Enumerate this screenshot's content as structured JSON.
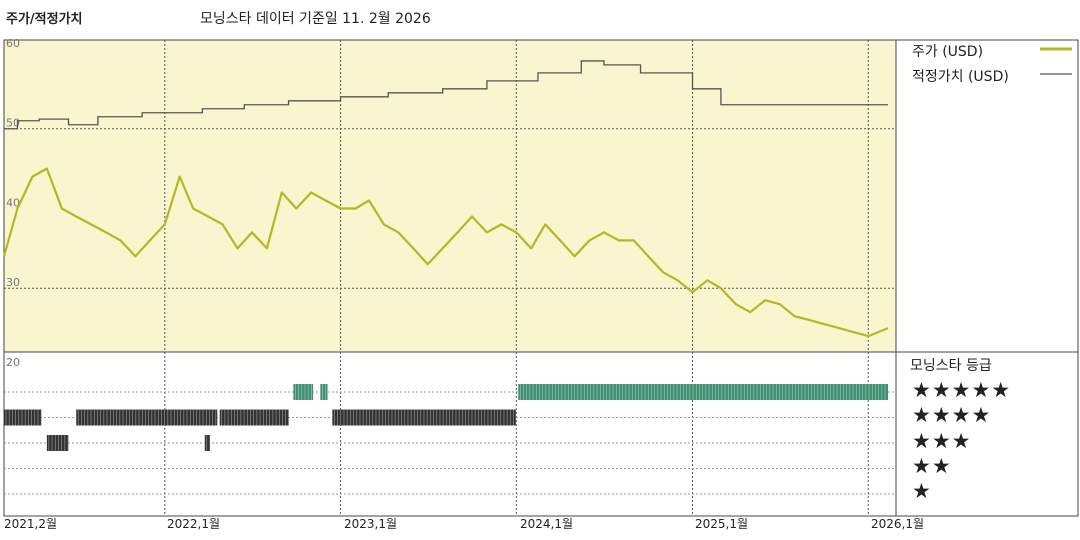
{
  "header": {
    "title": "주가/적정가치",
    "subtitle": "모닝스타 데이터 기준일 11. 2월 2026"
  },
  "legend": {
    "price_label": "주가 (USD)",
    "fair_value_label": "적정가치 (USD)",
    "rating_title": "모닝스타 등급",
    "star_rows": [
      "★★★★★",
      "★★★★",
      "★★★",
      "★★",
      "★"
    ]
  },
  "colors": {
    "price": "#b5b820",
    "fair_value": "#555555",
    "plot_bg": "#f8f5cf",
    "rating_5": "#3f8f72",
    "rating_other": "#333333"
  },
  "chart_data": {
    "type": "line",
    "title": "",
    "ylim": [
      20,
      62
    ],
    "y_ticks": [
      "60",
      "50",
      "40",
      "30",
      "20"
    ],
    "x_ticks": [
      "2021,2월",
      "2022,1월",
      "2023,1월",
      "2024,1월",
      "2025,1월",
      "2026,1월"
    ],
    "grid": true,
    "series": [
      {
        "name": "주가 (USD)",
        "x": [
          "2021-02-01",
          "2021-03-01",
          "2021-04-01",
          "2021-05-01",
          "2021-06-01",
          "2021-07-01",
          "2021-08-01",
          "2021-09-01",
          "2021-10-01",
          "2021-11-01",
          "2021-12-01",
          "2022-01-01",
          "2022-02-01",
          "2022-03-01",
          "2022-04-01",
          "2022-05-01",
          "2022-06-01",
          "2022-07-01",
          "2022-08-01",
          "2022-09-01",
          "2022-10-01",
          "2022-11-01",
          "2022-12-01",
          "2023-01-01",
          "2023-02-01",
          "2023-03-01",
          "2023-04-01",
          "2023-05-01",
          "2023-06-01",
          "2023-07-01",
          "2023-08-01",
          "2023-09-01",
          "2023-10-01",
          "2023-11-01",
          "2023-12-01",
          "2024-01-01",
          "2024-02-01",
          "2024-03-01",
          "2024-04-01",
          "2024-05-01",
          "2024-06-01",
          "2024-07-01",
          "2024-08-01",
          "2024-09-01",
          "2024-10-01",
          "2024-11-01",
          "2024-12-01",
          "2025-01-01",
          "2025-02-01",
          "2025-03-01",
          "2025-04-01",
          "2025-05-01",
          "2025-06-01",
          "2025-07-01",
          "2025-08-01",
          "2025-09-01",
          "2025-10-01",
          "2025-11-01",
          "2025-12-01",
          "2026-01-01",
          "2026-02-11"
        ],
        "y": [
          34,
          40,
          44,
          45,
          40,
          39,
          38,
          37,
          36,
          34,
          36,
          38,
          44,
          40,
          39,
          38,
          35,
          37,
          35,
          42,
          40,
          42,
          41,
          40,
          40,
          41,
          38,
          37,
          35,
          33,
          35,
          37,
          39,
          37,
          38,
          37,
          35,
          38,
          36,
          34,
          36,
          37,
          36,
          36,
          34,
          32,
          31,
          29.5,
          31,
          30,
          28,
          27,
          28.5,
          28,
          26.5,
          26,
          25.5,
          25,
          24.5,
          24,
          25
        ]
      },
      {
        "name": "적정가치 (USD)",
        "x": [
          "2021-02-01",
          "2021-03-01",
          "2021-04-15",
          "2021-06-15",
          "2021-08-15",
          "2021-11-15",
          "2022-03-20",
          "2022-06-15",
          "2022-09-15",
          "2023-01-01",
          "2023-04-10",
          "2023-08-01",
          "2023-11-01",
          "2024-02-15",
          "2024-05-15",
          "2024-07-01",
          "2024-09-15",
          "2025-01-01",
          "2025-03-01",
          "2026-02-11"
        ],
        "y": [
          50,
          51,
          51.2,
          50.5,
          51.5,
          52,
          52.5,
          53,
          53.5,
          54,
          54.5,
          55,
          56,
          57,
          58.5,
          58,
          57,
          55,
          53,
          53
        ]
      }
    ],
    "rating_periods": [
      {
        "stars": 4,
        "from": "2021-02-01",
        "to": "2021-04-20"
      },
      {
        "stars": 3,
        "from": "2021-05-01",
        "to": "2021-06-15"
      },
      {
        "stars": 4,
        "from": "2021-07-01",
        "to": "2022-04-20"
      },
      {
        "stars": 3,
        "from": "2022-03-25",
        "to": "2022-04-05"
      },
      {
        "stars": 4,
        "from": "2022-04-25",
        "to": "2022-09-15"
      },
      {
        "stars": 5,
        "from": "2022-09-25",
        "to": "2022-11-05"
      },
      {
        "stars": 5,
        "from": "2022-11-20",
        "to": "2022-12-05"
      },
      {
        "stars": 4,
        "from": "2022-12-15",
        "to": "2023-12-31"
      },
      {
        "stars": 5,
        "from": "2024-01-05",
        "to": "2026-02-11"
      }
    ]
  }
}
